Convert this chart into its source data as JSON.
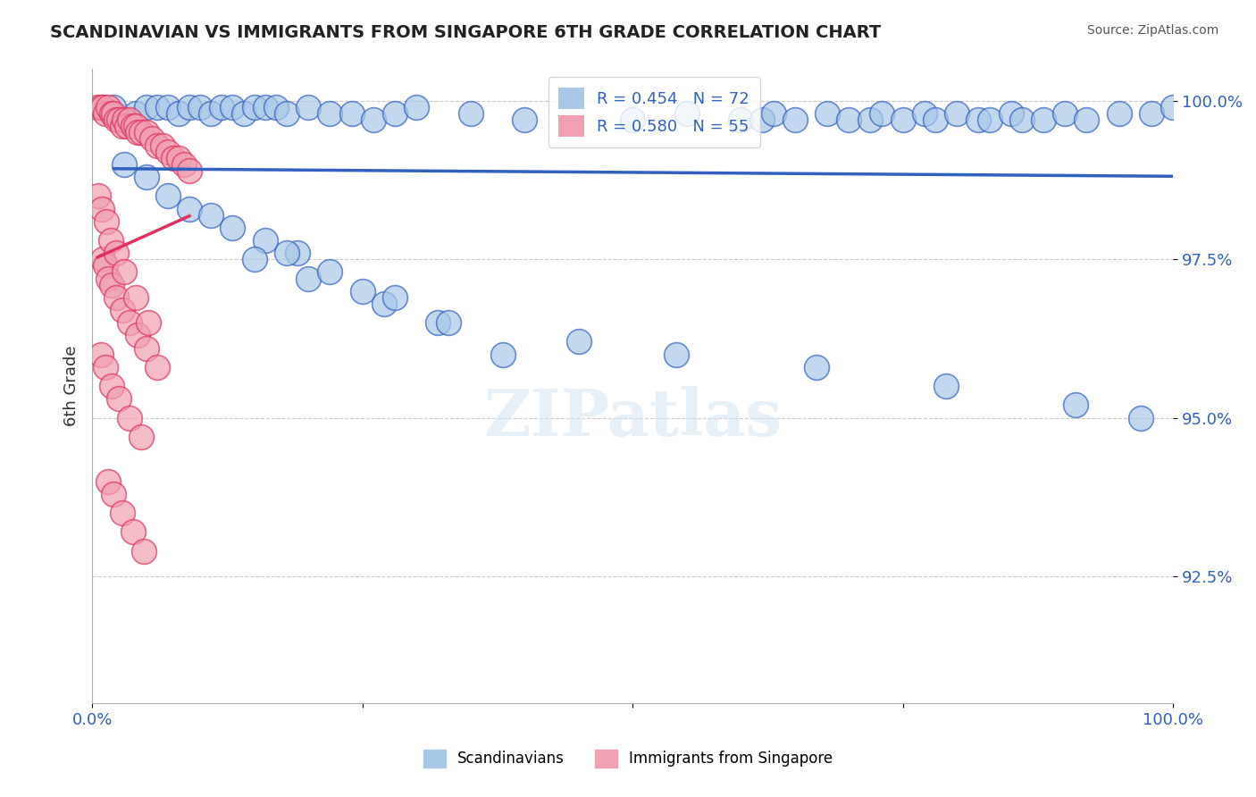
{
  "title": "SCANDINAVIAN VS IMMIGRANTS FROM SINGAPORE 6TH GRADE CORRELATION CHART",
  "source": "Source: ZipAtlas.com",
  "xlabel": "",
  "ylabel": "6th Grade",
  "xlim": [
    0.0,
    1.0
  ],
  "ylim": [
    0.905,
    1.005
  ],
  "yticks": [
    0.925,
    0.95,
    0.975,
    1.0
  ],
  "ytick_labels": [
    "92.5%",
    "95.0%",
    "97.5%",
    "100.0%"
  ],
  "xticks": [
    0.0,
    0.25,
    0.5,
    0.75,
    1.0
  ],
  "xtick_labels": [
    "0.0%",
    "",
    "",
    "",
    "100.0%"
  ],
  "blue_R": 0.454,
  "blue_N": 72,
  "pink_R": 0.58,
  "pink_N": 55,
  "blue_color": "#a8c8e8",
  "pink_color": "#f0a0b0",
  "blue_line_color": "#3060c0",
  "pink_line_color": "#e03060",
  "legend_label_blue": "Scandinavians",
  "legend_label_pink": "Immigrants from Singapore",
  "watermark": "ZIPatlas",
  "blue_scatter_x": [
    0.02,
    0.04,
    0.05,
    0.06,
    0.07,
    0.08,
    0.09,
    0.1,
    0.11,
    0.12,
    0.13,
    0.14,
    0.15,
    0.16,
    0.17,
    0.18,
    0.2,
    0.22,
    0.24,
    0.26,
    0.28,
    0.3,
    0.35,
    0.4,
    0.5,
    0.55,
    0.6,
    0.62,
    0.63,
    0.65,
    0.68,
    0.7,
    0.72,
    0.73,
    0.75,
    0.77,
    0.78,
    0.8,
    0.82,
    0.83,
    0.85,
    0.86,
    0.88,
    0.9,
    0.92,
    0.95,
    0.98,
    1.0,
    0.03,
    0.05,
    0.07,
    0.09,
    0.11,
    0.13,
    0.16,
    0.19,
    0.25,
    0.32,
    0.38,
    0.15,
    0.2,
    0.27,
    0.18,
    0.22,
    0.28,
    0.33,
    0.45,
    0.54,
    0.67,
    0.79,
    0.91,
    0.97
  ],
  "blue_scatter_y": [
    0.999,
    0.998,
    0.999,
    0.999,
    0.999,
    0.998,
    0.999,
    0.999,
    0.998,
    0.999,
    0.999,
    0.998,
    0.999,
    0.999,
    0.999,
    0.998,
    0.999,
    0.998,
    0.998,
    0.997,
    0.998,
    0.999,
    0.998,
    0.997,
    0.997,
    0.998,
    0.997,
    0.997,
    0.998,
    0.997,
    0.998,
    0.997,
    0.997,
    0.998,
    0.997,
    0.998,
    0.997,
    0.998,
    0.997,
    0.997,
    0.998,
    0.997,
    0.997,
    0.998,
    0.997,
    0.998,
    0.998,
    0.999,
    0.99,
    0.988,
    0.985,
    0.983,
    0.982,
    0.98,
    0.978,
    0.976,
    0.97,
    0.965,
    0.96,
    0.975,
    0.972,
    0.968,
    0.976,
    0.973,
    0.969,
    0.965,
    0.962,
    0.96,
    0.958,
    0.955,
    0.952,
    0.95
  ],
  "pink_scatter_x": [
    0.005,
    0.008,
    0.01,
    0.012,
    0.015,
    0.018,
    0.02,
    0.022,
    0.025,
    0.028,
    0.03,
    0.032,
    0.035,
    0.038,
    0.04,
    0.042,
    0.045,
    0.05,
    0.055,
    0.06,
    0.065,
    0.07,
    0.075,
    0.08,
    0.085,
    0.09,
    0.01,
    0.012,
    0.015,
    0.018,
    0.022,
    0.028,
    0.035,
    0.042,
    0.05,
    0.06,
    0.008,
    0.012,
    0.018,
    0.025,
    0.035,
    0.045,
    0.015,
    0.02,
    0.028,
    0.038,
    0.048,
    0.006,
    0.009,
    0.013,
    0.017,
    0.022,
    0.03,
    0.04,
    0.052
  ],
  "pink_scatter_y": [
    0.999,
    0.999,
    0.999,
    0.998,
    0.999,
    0.998,
    0.998,
    0.997,
    0.997,
    0.996,
    0.997,
    0.996,
    0.997,
    0.996,
    0.996,
    0.995,
    0.995,
    0.995,
    0.994,
    0.993,
    0.993,
    0.992,
    0.991,
    0.991,
    0.99,
    0.989,
    0.975,
    0.974,
    0.972,
    0.971,
    0.969,
    0.967,
    0.965,
    0.963,
    0.961,
    0.958,
    0.96,
    0.958,
    0.955,
    0.953,
    0.95,
    0.947,
    0.94,
    0.938,
    0.935,
    0.932,
    0.929,
    0.985,
    0.983,
    0.981,
    0.978,
    0.976,
    0.973,
    0.969,
    0.965
  ]
}
